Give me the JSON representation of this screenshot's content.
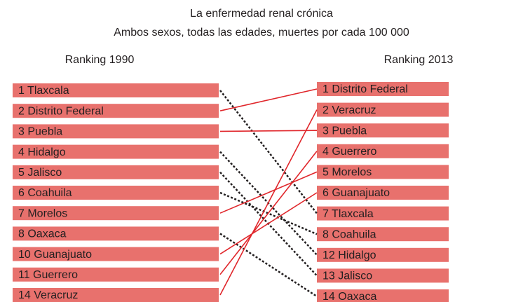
{
  "chart_data": {
    "type": "ranking",
    "title": "La enfermedad renal crónica",
    "subtitle": "Ambos sexos, todas las edades, muertes por cada 100 000",
    "left_heading": "Ranking 1990",
    "right_heading": "Ranking 2013",
    "box_color": "#e8716d",
    "up_color": "#e0262b",
    "down_color": "#231f20",
    "left": [
      "1 Tlaxcala",
      "2 Distrito Federal",
      "3 Puebla",
      "4 Hidalgo",
      "5 Jalisco",
      "6 Coahuila",
      "7 Morelos",
      "8 Oaxaca",
      "10 Guanajuato",
      "11 Guerrero",
      "14 Veracruz"
    ],
    "right": [
      "1 Distrito Federal",
      "2 Veracruz",
      "3 Puebla",
      "4 Guerrero",
      "5 Morelos",
      "6 Guanajuato",
      "7 Tlaxcala",
      "8 Coahuila",
      "12 Hidalgo",
      "13 Jalisco",
      "14 Oaxaca"
    ],
    "links": [
      [
        0,
        6
      ],
      [
        1,
        0
      ],
      [
        2,
        2
      ],
      [
        3,
        8
      ],
      [
        4,
        9
      ],
      [
        5,
        7
      ],
      [
        6,
        4
      ],
      [
        7,
        10
      ],
      [
        8,
        5
      ],
      [
        9,
        3
      ],
      [
        10,
        1
      ]
    ]
  }
}
